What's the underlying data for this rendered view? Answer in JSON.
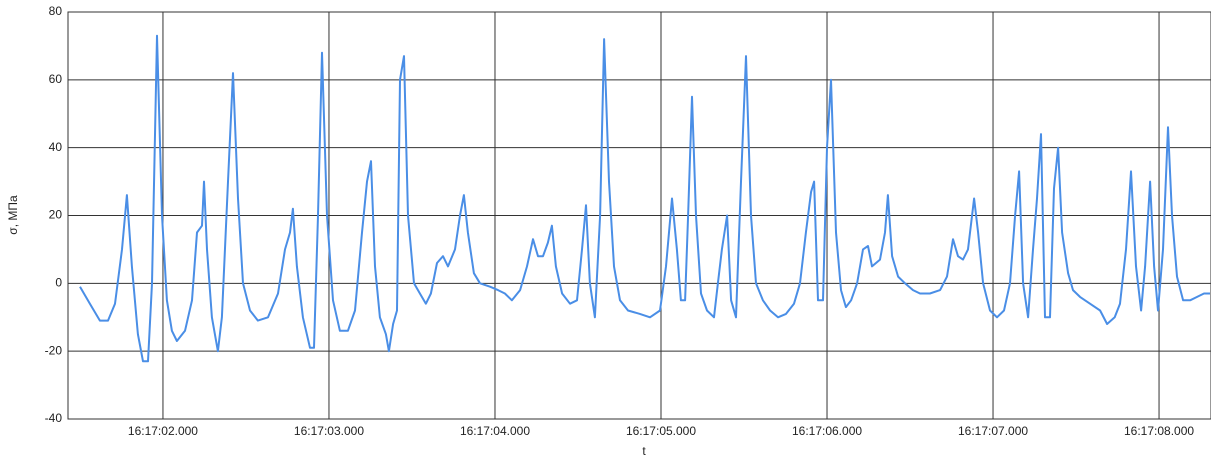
{
  "chart_data": {
    "type": "line",
    "y_label": "σ, МПа",
    "x_label": "t",
    "color": "#4a8ee6",
    "grid": true,
    "xlim": [
      1.428,
      8.313
    ],
    "ylim": [
      -40,
      80
    ],
    "yticks": [
      -40,
      -20,
      0,
      20,
      40,
      60,
      80
    ],
    "xticks": [
      {
        "value": 2,
        "label": "16:17:02.000"
      },
      {
        "value": 3,
        "label": "16:17:03.000"
      },
      {
        "value": 4,
        "label": "16:17:04.000"
      },
      {
        "value": 5,
        "label": "16:17:05.000"
      },
      {
        "value": 6,
        "label": "16:17:06.000"
      },
      {
        "value": 7,
        "label": "16:17:07.000"
      },
      {
        "value": 8,
        "label": "16:17:08.000"
      }
    ],
    "x": [
      1.5,
      1.56,
      1.62,
      1.669,
      1.711,
      1.753,
      1.783,
      1.813,
      1.849,
      1.88,
      1.91,
      1.934,
      1.964,
      1.994,
      2.024,
      2.054,
      2.084,
      2.133,
      2.175,
      2.205,
      2.235,
      2.247,
      2.265,
      2.295,
      2.331,
      2.355,
      2.392,
      2.422,
      2.452,
      2.482,
      2.524,
      2.572,
      2.633,
      2.693,
      2.735,
      2.765,
      2.783,
      2.807,
      2.843,
      2.886,
      2.91,
      2.934,
      2.958,
      2.988,
      3.024,
      3.066,
      3.114,
      3.157,
      3.199,
      3.229,
      3.253,
      3.277,
      3.307,
      3.343,
      3.361,
      3.386,
      3.41,
      3.428,
      3.452,
      3.476,
      3.512,
      3.548,
      3.584,
      3.614,
      3.651,
      3.687,
      3.717,
      3.759,
      3.789,
      3.813,
      3.837,
      3.873,
      3.91,
      3.97,
      4.018,
      4.06,
      4.102,
      4.151,
      4.193,
      4.229,
      4.259,
      4.289,
      4.319,
      4.343,
      4.367,
      4.404,
      4.452,
      4.494,
      4.524,
      4.548,
      4.572,
      4.602,
      4.633,
      4.657,
      4.687,
      4.717,
      4.753,
      4.801,
      4.873,
      4.934,
      4.994,
      5.03,
      5.066,
      5.096,
      5.12,
      5.145,
      5.163,
      5.187,
      5.211,
      5.241,
      5.277,
      5.319,
      5.343,
      5.367,
      5.398,
      5.422,
      5.452,
      5.482,
      5.512,
      5.542,
      5.572,
      5.614,
      5.657,
      5.705,
      5.753,
      5.801,
      5.837,
      5.873,
      5.904,
      5.922,
      5.946,
      5.976,
      6.0,
      6.024,
      6.054,
      6.084,
      6.114,
      6.145,
      6.181,
      6.217,
      6.247,
      6.271,
      6.319,
      6.349,
      6.367,
      6.392,
      6.428,
      6.47,
      6.518,
      6.56,
      6.62,
      6.681,
      6.723,
      6.759,
      6.789,
      6.819,
      6.849,
      6.886,
      6.91,
      6.94,
      6.982,
      7.024,
      7.066,
      7.102,
      7.133,
      7.157,
      7.181,
      7.211,
      7.241,
      7.265,
      7.289,
      7.313,
      7.343,
      7.367,
      7.392,
      7.416,
      7.452,
      7.482,
      7.524,
      7.584,
      7.645,
      7.687,
      7.733,
      7.765,
      7.801,
      7.831,
      7.861,
      7.892,
      7.916,
      7.946,
      7.97,
      7.994,
      8.024,
      8.054,
      8.078,
      8.108,
      8.145,
      8.187,
      8.229,
      8.271,
      8.307
    ],
    "values": [
      -1,
      -6,
      -11,
      -11,
      -6,
      10,
      26,
      5,
      -15,
      -23,
      -23,
      0,
      73,
      20,
      -5,
      -14,
      -17,
      -14,
      -5,
      15,
      17,
      30,
      10,
      -10,
      -20,
      -10,
      30,
      62,
      25,
      0,
      -8,
      -11,
      -10,
      -3,
      10,
      15,
      22,
      5,
      -10,
      -19,
      -19,
      20,
      68,
      20,
      -5,
      -14,
      -14,
      -8,
      15,
      30,
      36,
      5,
      -10,
      -15,
      -20,
      -12,
      -8,
      60,
      67,
      20,
      0,
      -3,
      -6,
      -3,
      6,
      8,
      5,
      10,
      20,
      26,
      15,
      3,
      0,
      -1,
      -2,
      -3,
      -5,
      -2,
      5,
      13,
      8,
      8,
      12,
      17,
      5,
      -3,
      -6,
      -5,
      10,
      23,
      0,
      -10,
      20,
      72,
      30,
      5,
      -5,
      -8,
      -9,
      -10,
      -8,
      5,
      25,
      10,
      -5,
      -5,
      20,
      55,
      20,
      -3,
      -8,
      -10,
      0,
      10,
      20,
      -5,
      -10,
      30,
      67,
      20,
      0,
      -5,
      -8,
      -10,
      -9,
      -6,
      0,
      15,
      27,
      30,
      -5,
      -5,
      40,
      60,
      15,
      -2,
      -7,
      -5,
      0,
      10,
      11,
      5,
      7,
      15,
      26,
      8,
      2,
      0,
      -2,
      -3,
      -3,
      -2,
      2,
      13,
      8,
      7,
      10,
      25,
      15,
      0,
      -8,
      -10,
      -8,
      0,
      20,
      33,
      0,
      -10,
      10,
      25,
      44,
      -10,
      -10,
      28,
      40,
      15,
      3,
      -2,
      -4,
      -6,
      -8,
      -12,
      -10,
      -6,
      10,
      33,
      5,
      -8,
      5,
      30,
      5,
      -8,
      10,
      46,
      20,
      2,
      -5,
      -5,
      -4,
      -3,
      -3
    ]
  }
}
